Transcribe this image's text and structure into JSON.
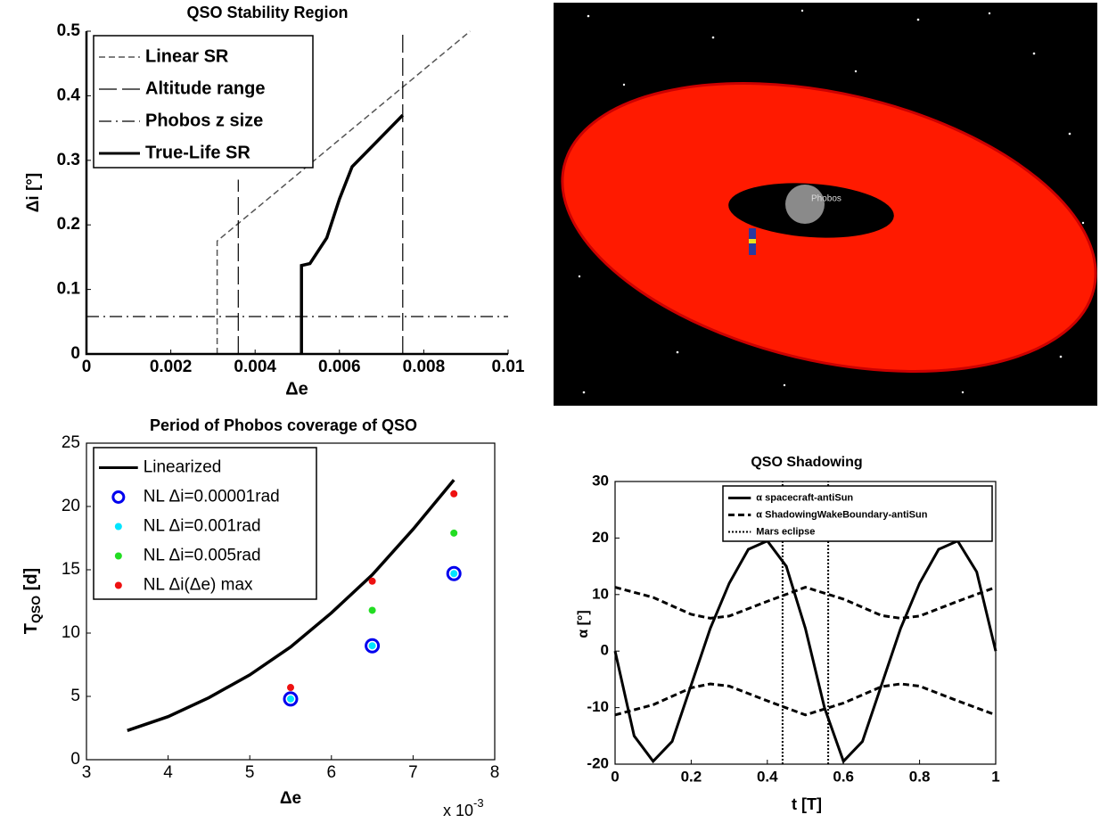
{
  "chart_data": [
    {
      "type": "line",
      "title": "QSO Stability Region",
      "xlabel": "Δe",
      "ylabel": "Δi [°]",
      "xlim": [
        0,
        0.01
      ],
      "xticks": [
        0,
        0.002,
        0.004,
        0.006,
        0.008,
        0.01
      ],
      "ylim": [
        0,
        0.5
      ],
      "yticks": [
        0,
        0.1,
        0.2,
        0.3,
        0.4,
        0.5
      ],
      "legend": "upper left",
      "series": [
        {
          "name": "Linear SR",
          "color": "#555555",
          "style": "line",
          "dash": "dashed",
          "width": 1.5,
          "x": [
            0.0031,
            0.0031,
            0.0091
          ],
          "values": [
            0,
            0.175,
            0.5
          ]
        },
        {
          "name": "Altitude range",
          "color": "#000000",
          "style": "line",
          "dash": "longdash",
          "width": 1.2,
          "x": [
            0.0036,
            0.0036,
            null,
            0.0075,
            0.0075
          ],
          "values": [
            0,
            0.27,
            null,
            0,
            0.5
          ]
        },
        {
          "name": "Phobos z size",
          "color": "#000000",
          "style": "line",
          "dash": "dashdot",
          "width": 1.2,
          "x": [
            0,
            0.01
          ],
          "values": [
            0.058,
            0.058
          ]
        },
        {
          "name": "True-Life SR",
          "color": "#000000",
          "style": "line",
          "dash": "solid",
          "width": 3.5,
          "x": [
            0.0051,
            0.0051,
            0.0053,
            0.0057,
            0.006,
            0.0063,
            0.0069,
            0.0075
          ],
          "values": [
            0,
            0.137,
            0.14,
            0.18,
            0.24,
            0.29,
            0.33,
            0.37
          ]
        }
      ]
    },
    {
      "type": "line",
      "title": "Period of Phobos coverage of QSO",
      "xlabel": "Δe",
      "ylabel": {
        "main": "T",
        "sub": "QSO",
        "rest": " [d]"
      },
      "x_multiplier": {
        "base": "x 10",
        "exp": "-3"
      },
      "xlim": [
        3,
        8
      ],
      "xticks": [
        3,
        4,
        5,
        6,
        7,
        8
      ],
      "ylim": [
        0,
        25
      ],
      "yticks": [
        0,
        5,
        10,
        15,
        20,
        25
      ],
      "legend": "upper left",
      "series": [
        {
          "name": "Linearized",
          "color": "#000000",
          "style": "line",
          "dash": "solid",
          "width": 3.5,
          "x": [
            3.5,
            4,
            4.5,
            5,
            5.5,
            6,
            6.5,
            7,
            7.5
          ],
          "values": [
            2.3,
            3.4,
            4.9,
            6.7,
            8.9,
            11.6,
            14.6,
            18.2,
            22.1
          ]
        },
        {
          "name": "NL Δi=0.00001rad",
          "color": "#0000ee",
          "style": "marker",
          "marker": "ring",
          "x": [
            5.5,
            6.5,
            7.5
          ],
          "values": [
            4.8,
            9.0,
            14.7
          ]
        },
        {
          "name": "NL Δi=0.001rad",
          "color": "#00e5ff",
          "style": "marker",
          "marker": "dot",
          "x": [
            5.5,
            6.5,
            7.5
          ],
          "values": [
            4.8,
            9.0,
            14.7
          ]
        },
        {
          "name": "NL Δi=0.005rad",
          "color": "#22dd22",
          "style": "marker",
          "marker": "dot",
          "x": [
            6.5,
            7.5
          ],
          "values": [
            11.8,
            17.9
          ]
        },
        {
          "name": "NL Δi(Δe) max",
          "color": "#ee1111",
          "style": "marker",
          "marker": "dot",
          "x": [
            5.5,
            6.5,
            7.5
          ],
          "values": [
            5.7,
            14.1,
            21.0
          ]
        }
      ]
    },
    {
      "type": "line",
      "title": "QSO Shadowing",
      "xlabel": "t [T]",
      "ylabel": "α [°]",
      "xlim": [
        0,
        1
      ],
      "xticks": [
        0,
        0.2,
        0.4,
        0.6,
        0.8,
        1
      ],
      "ylim": [
        -20,
        30
      ],
      "yticks": [
        -20,
        -10,
        0,
        10,
        20,
        30
      ],
      "legend": "upper right",
      "series": [
        {
          "name": "α spacecraft-antiSun",
          "color": "#000000",
          "style": "line",
          "dash": "solid",
          "width": 3,
          "x": [
            0,
            0.05,
            0.1,
            0.15,
            0.2,
            0.25,
            0.3,
            0.35,
            0.4,
            0.45,
            0.5,
            0.55,
            0.6,
            0.65,
            0.7,
            0.75,
            0.8,
            0.85,
            0.9,
            0.95,
            1
          ],
          "values": [
            0,
            -15,
            -19.5,
            -16,
            -6,
            4,
            12,
            18,
            19.5,
            15,
            4,
            -10,
            -19.5,
            -16,
            -6,
            4,
            12,
            18,
            19.5,
            14,
            0
          ]
        },
        {
          "name": "α ShadowingWakeBoundary-antiSun",
          "color": "#000000",
          "style": "line",
          "dash": "dashed",
          "width": 3,
          "x": [
            0,
            0.1,
            0.2,
            0.25,
            0.3,
            0.4,
            0.5,
            0.6,
            0.7,
            0.75,
            0.8,
            0.9,
            1,
            null,
            0,
            0.1,
            0.2,
            0.25,
            0.3,
            0.4,
            0.5,
            0.6,
            0.7,
            0.75,
            0.8,
            0.9,
            1
          ],
          "values": [
            11.3,
            9.5,
            6.5,
            5.8,
            6.2,
            8.8,
            11.3,
            9.2,
            6.3,
            5.8,
            6.2,
            8.8,
            11.3,
            null,
            -11.3,
            -9.5,
            -6.5,
            -5.8,
            -6.2,
            -8.8,
            -11.3,
            -9.2,
            -6.3,
            -5.8,
            -6.2,
            -8.8,
            -11.3
          ]
        },
        {
          "name": "Mars eclipse",
          "color": "#000000",
          "style": "line",
          "dash": "dotted",
          "width": 2,
          "x": [
            0.44,
            0.44,
            null,
            0.56,
            0.56
          ],
          "values": [
            -20,
            30,
            null,
            -20,
            30
          ]
        }
      ]
    }
  ],
  "render": {
    "label": "Phobos"
  }
}
